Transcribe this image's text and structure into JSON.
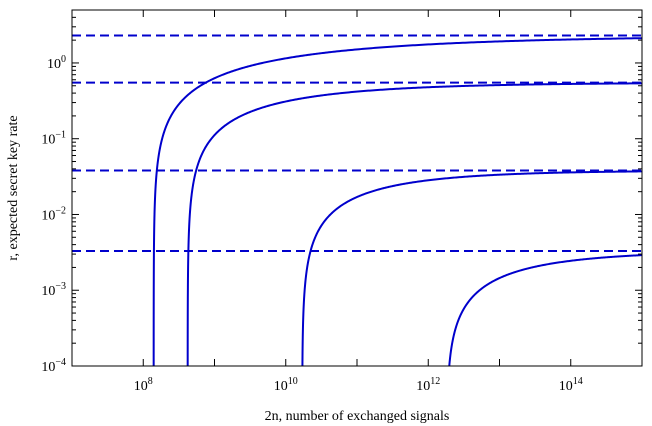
{
  "chart_data": {
    "type": "line",
    "title": "",
    "xlabel": "2n, number of exchanged signals",
    "ylabel": "r, expected secret key rate",
    "xscale": "log",
    "yscale": "log",
    "xlim": [
      10000000,
      1000000000000000
    ],
    "ylim": [
      0.0001,
      5
    ],
    "grid": false,
    "legend": "none",
    "x_ticks": [
      {
        "value": 100000000,
        "base": "10",
        "exp": "8"
      },
      {
        "value": 10000000000,
        "base": "10",
        "exp": "10"
      },
      {
        "value": 1000000000000,
        "base": "10",
        "exp": "12"
      },
      {
        "value": 100000000000000,
        "base": "10",
        "exp": "14"
      }
    ],
    "y_ticks": [
      {
        "value": 0.0001,
        "base": "10",
        "exp": "−4"
      },
      {
        "value": 0.001,
        "base": "10",
        "exp": "−3"
      },
      {
        "value": 0.01,
        "base": "10",
        "exp": "−2"
      },
      {
        "value": 0.1,
        "base": "10",
        "exp": "−1"
      },
      {
        "value": 1,
        "base": "10",
        "exp": "0"
      }
    ],
    "line_color": "#0000cc",
    "series": [
      {
        "style": "solid",
        "asymptote": 2.3,
        "x_start": 140000000,
        "points": [
          [
            140000000,
            0.0001
          ],
          [
            150000000,
            0.02
          ],
          [
            200000000,
            0.18
          ],
          [
            300000000,
            0.32
          ],
          [
            1000000000,
            0.62
          ],
          [
            10000000000,
            1.15
          ],
          [
            100000000000,
            1.62
          ],
          [
            1000000000000,
            1.95
          ],
          [
            10000000000000,
            2.15
          ],
          [
            100000000000000,
            2.25
          ],
          [
            1000000000000000,
            2.28
          ]
        ]
      },
      {
        "style": "solid",
        "asymptote": 0.55,
        "x_start": 420000000,
        "points": [
          [
            420000000,
            0.0001
          ],
          [
            450000000,
            0.005
          ],
          [
            500000000,
            0.03
          ],
          [
            700000000,
            0.085
          ],
          [
            1000000000,
            0.15
          ],
          [
            10000000000,
            0.31
          ],
          [
            100000000000,
            0.42
          ],
          [
            1000000000000,
            0.49
          ],
          [
            10000000000000,
            0.52
          ],
          [
            100000000000000,
            0.54
          ],
          [
            1000000000000000,
            0.55
          ]
        ]
      },
      {
        "style": "solid",
        "asymptote": 0.038,
        "x_start": 17000000000,
        "points": [
          [
            17000000000,
            0.0001
          ],
          [
            18000000000,
            0.0012
          ],
          [
            22000000000,
            0.0042
          ],
          [
            40000000000,
            0.0095
          ],
          [
            100000000000,
            0.017
          ],
          [
            1000000000000,
            0.028
          ],
          [
            10000000000000,
            0.034
          ],
          [
            100000000000000,
            0.037
          ],
          [
            1000000000000000,
            0.038
          ]
        ]
      },
      {
        "style": "solid",
        "asymptote": 0.0033,
        "x_start": 1800000000000,
        "points": [
          [
            1800000000000,
            0.0001
          ],
          [
            2000000000000,
            0.00024
          ],
          [
            3000000000000,
            0.00062
          ],
          [
            6000000000000,
            0.0011
          ],
          [
            10000000000000,
            0.0015
          ],
          [
            100000000000000,
            0.0026
          ],
          [
            1000000000000000,
            0.0031
          ]
        ]
      },
      {
        "style": "dashed",
        "points": [
          [
            10000000,
            2.3
          ],
          [
            1000000000000000,
            2.3
          ]
        ]
      },
      {
        "style": "dashed",
        "points": [
          [
            10000000,
            0.55
          ],
          [
            1000000000000000,
            0.55
          ]
        ]
      },
      {
        "style": "dashed",
        "points": [
          [
            10000000,
            0.038
          ],
          [
            1000000000000000,
            0.038
          ]
        ]
      },
      {
        "style": "dashed",
        "points": [
          [
            10000000,
            0.0033
          ],
          [
            1000000000000000,
            0.0033
          ]
        ]
      }
    ]
  }
}
